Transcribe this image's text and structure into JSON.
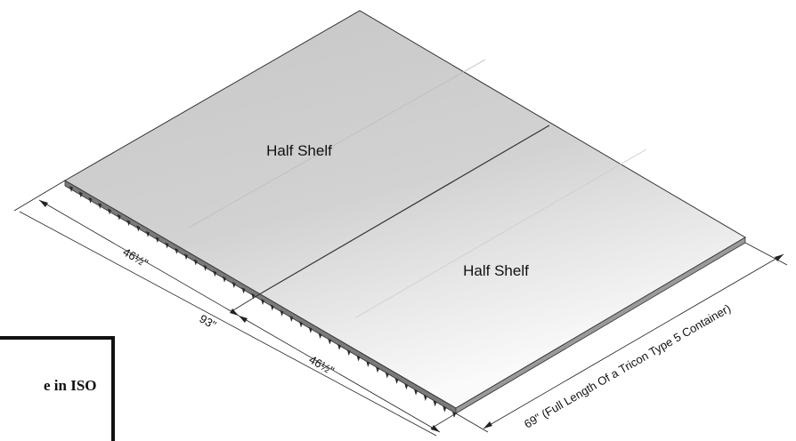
{
  "labels": {
    "upper_panel": "Half Shelf",
    "lower_panel": "Half Shelf"
  },
  "dimensions": {
    "half_upper": "46½\"",
    "full_width": "93\"",
    "half_lower": "46½\"",
    "length": "69\" (Full Length Of a Tricon Type 5 Container)"
  },
  "note_box": {
    "text": "e in ISO"
  }
}
